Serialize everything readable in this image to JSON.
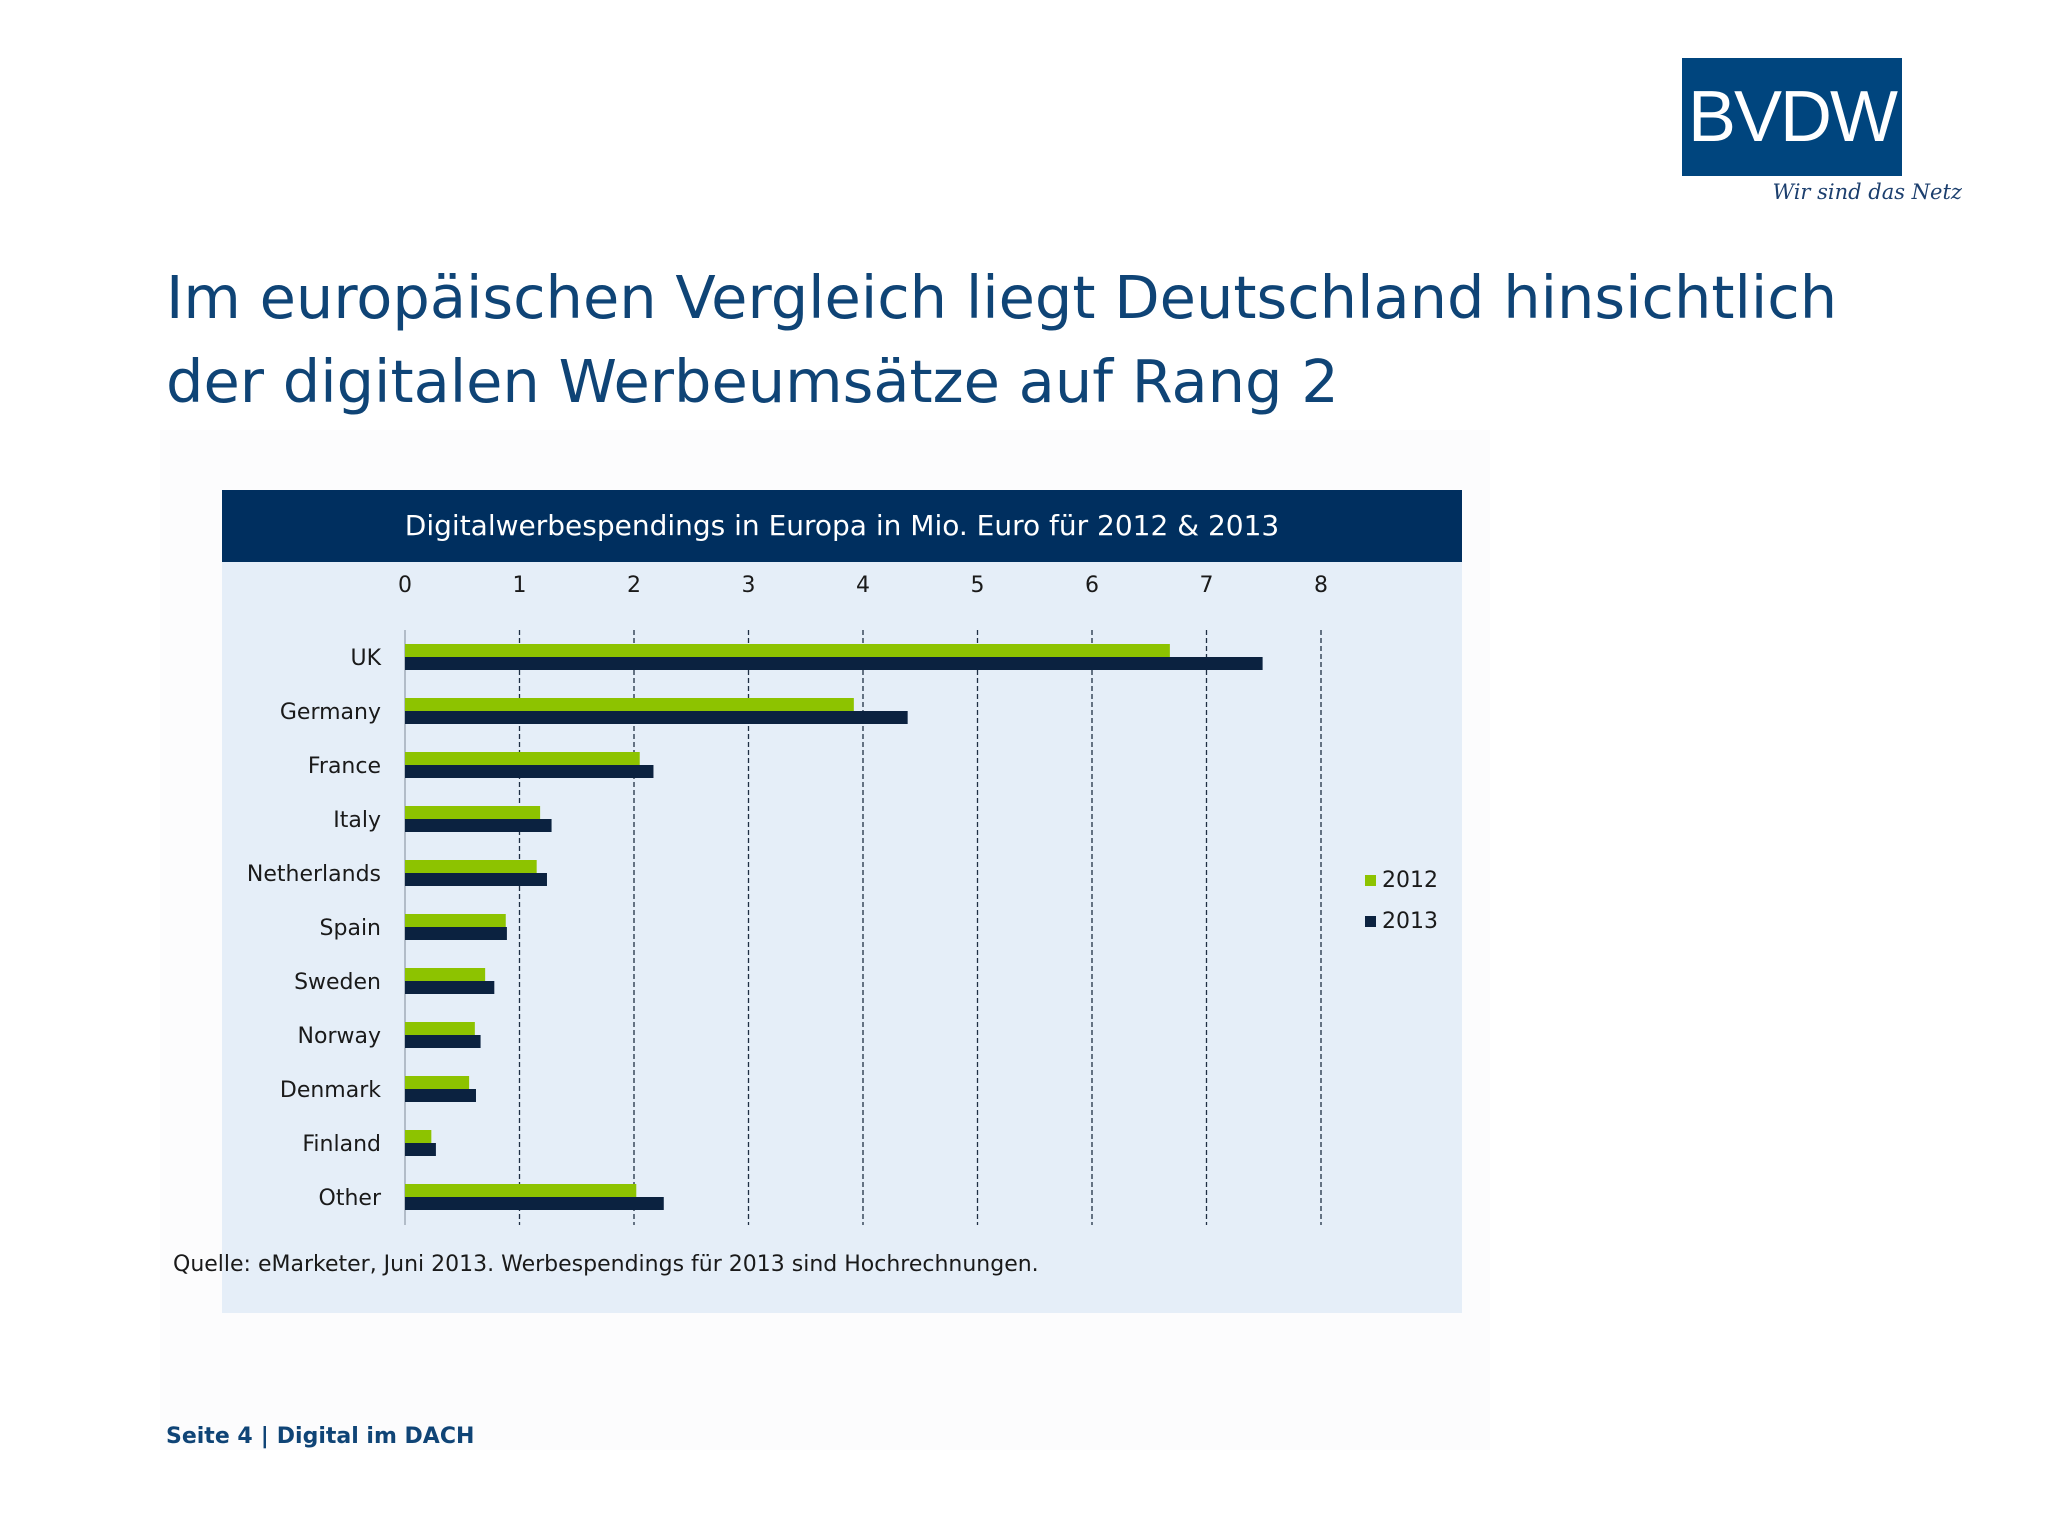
{
  "logo": {
    "text": "BVDW",
    "tagline": "Wir sind das Netz"
  },
  "title_line1": "Im europäischen Vergleich liegt Deutschland hinsichtlich",
  "title_line2": "der digitalen Werbeumsätze auf Rang 2",
  "source": "Quelle: eMarketer, Juni 2013. Werbespendings für 2013 sind Hochrechnungen.",
  "footer": {
    "page": "Seite 4",
    "section": "Digital im DACH"
  },
  "colors": {
    "series_2012": "#8dc300",
    "series_2013": "#0b2240",
    "header_bg": "#002f5f",
    "title": "#0f4476"
  },
  "chart_data": {
    "type": "bar",
    "orientation": "horizontal",
    "title": "Digitalwerbespendings in Europa in Mio. Euro für 2012 & 2013",
    "categories": [
      "UK",
      "Germany",
      "France",
      "Italy",
      "Netherlands",
      "Spain",
      "Sweden",
      "Norway",
      "Denmark",
      "Finland",
      "Other"
    ],
    "series": [
      {
        "name": "2012",
        "values": [
          6.68,
          3.92,
          2.05,
          1.18,
          1.15,
          0.88,
          0.7,
          0.61,
          0.56,
          0.23,
          2.02
        ]
      },
      {
        "name": "2013",
        "values": [
          7.49,
          4.39,
          2.17,
          1.28,
          1.24,
          0.89,
          0.78,
          0.66,
          0.62,
          0.27,
          2.26
        ]
      }
    ],
    "xlim": [
      0,
      8
    ],
    "xticks": [
      "0",
      "1",
      "2",
      "3",
      "4",
      "5",
      "6",
      "7",
      "8"
    ],
    "x_axis_position": "top",
    "grid": "vertical dashed",
    "legend": "right"
  }
}
